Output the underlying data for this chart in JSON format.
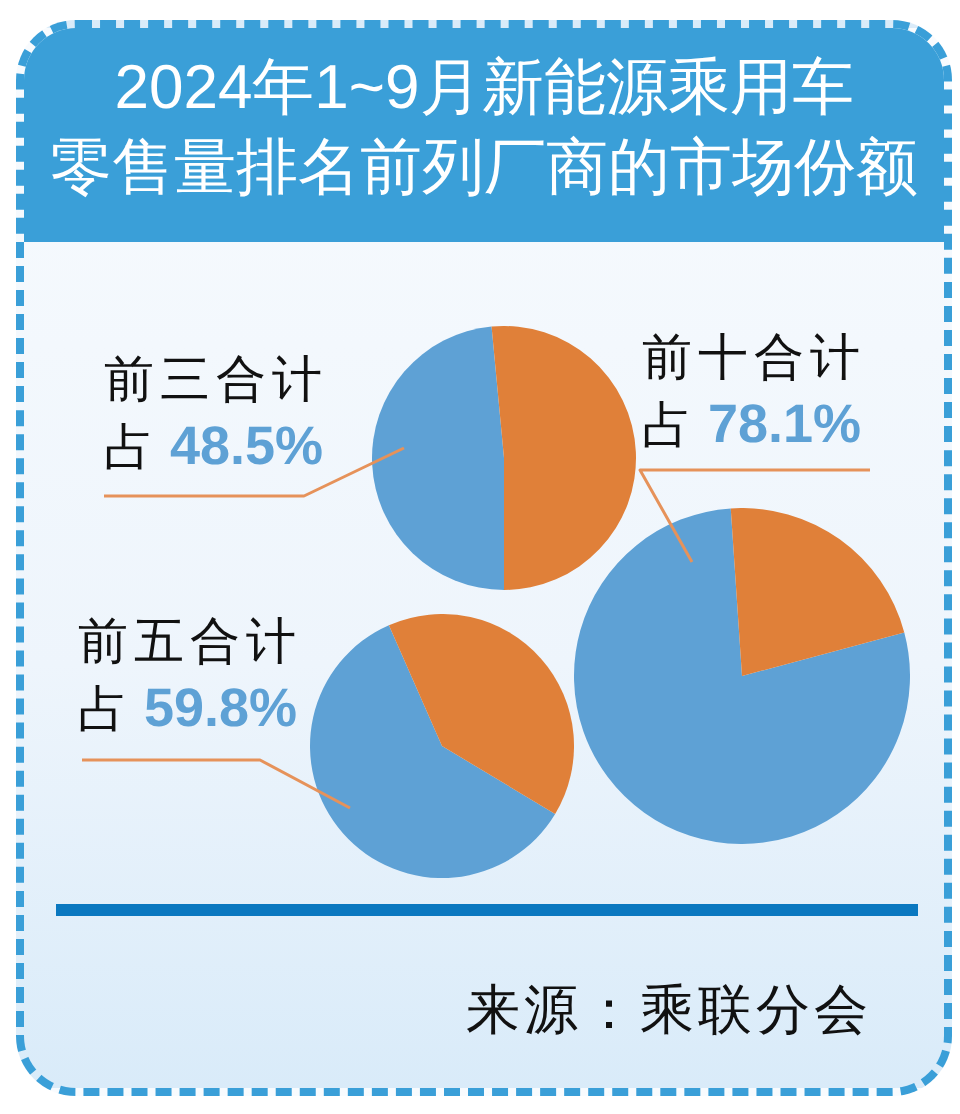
{
  "chart_data": [
    {
      "type": "other",
      "title": "2024年1~9月新能源乘用车零售量排名前列厂商的市场份额",
      "annotations": [
        "来源：乘联分会"
      ]
    },
    {
      "type": "pie",
      "categories": [
        "前三合计",
        null
      ],
      "values": [
        48.5,
        51.5
      ],
      "colors": [
        "#5ea1d5",
        "#e08039"
      ],
      "value_labels": [
        "占 48.5%",
        null
      ]
    },
    {
      "type": "pie",
      "categories": [
        "前五合计",
        null
      ],
      "values": [
        59.8,
        40.2
      ],
      "colors": [
        "#5ea1d5",
        "#e08039"
      ],
      "value_labels": [
        "占 59.8%",
        null
      ]
    },
    {
      "type": "pie",
      "categories": [
        "前十合计",
        null
      ],
      "values": [
        78.1,
        21.9
      ],
      "colors": [
        "#5ea1d5",
        "#e08039"
      ],
      "value_labels": [
        "占 78.1%",
        null
      ]
    }
  ]
}
